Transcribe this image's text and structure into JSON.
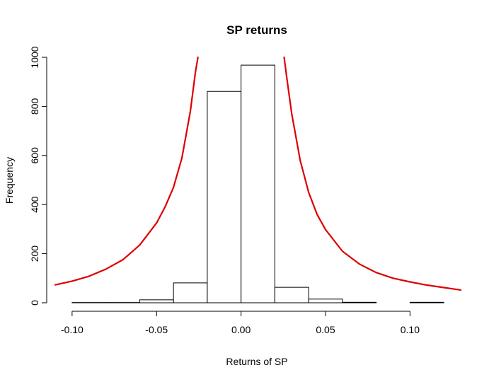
{
  "chart_data": {
    "type": "bar",
    "title": "SP returns",
    "xlabel": "Returns of SP",
    "ylabel": "Frequency",
    "xlim": [
      -0.11,
      0.13
    ],
    "ylim": [
      0,
      1000
    ],
    "x_ticks": [
      -0.1,
      -0.05,
      0.0,
      0.05,
      0.1
    ],
    "x_tick_labels": [
      "-0.10",
      "-0.05",
      "0.00",
      "0.05",
      "0.10"
    ],
    "y_ticks": [
      0,
      200,
      400,
      600,
      800,
      1000
    ],
    "y_tick_labels": [
      "0",
      "200",
      "400",
      "600",
      "800",
      "1000"
    ],
    "bins": [
      {
        "start": -0.1,
        "end": -0.08,
        "count": 1
      },
      {
        "start": -0.08,
        "end": -0.06,
        "count": 1
      },
      {
        "start": -0.06,
        "end": -0.04,
        "count": 12
      },
      {
        "start": -0.04,
        "end": -0.02,
        "count": 81
      },
      {
        "start": -0.02,
        "end": 0.0,
        "count": 861
      },
      {
        "start": 0.0,
        "end": 0.02,
        "count": 968
      },
      {
        "start": 0.02,
        "end": 0.04,
        "count": 63
      },
      {
        "start": 0.04,
        "end": 0.06,
        "count": 15
      },
      {
        "start": 0.06,
        "end": 0.08,
        "count": 2
      },
      {
        "start": 0.08,
        "end": 0.1,
        "count": 0
      },
      {
        "start": 0.1,
        "end": 0.12,
        "count": 2
      }
    ],
    "overlay_curve": {
      "color": "#dd0000",
      "points": [
        [
          -0.11,
          73
        ],
        [
          -0.1,
          88
        ],
        [
          -0.09,
          108
        ],
        [
          -0.08,
          137
        ],
        [
          -0.07,
          175
        ],
        [
          -0.06,
          235
        ],
        [
          -0.05,
          325
        ],
        [
          -0.045,
          390
        ],
        [
          -0.04,
          470
        ],
        [
          -0.035,
          590
        ],
        [
          -0.03,
          780
        ],
        [
          -0.027,
          940
        ],
        [
          -0.0255,
          1000
        ],
        [
          0.0255,
          1000
        ],
        [
          0.027,
          920
        ],
        [
          0.03,
          770
        ],
        [
          0.035,
          580
        ],
        [
          0.04,
          450
        ],
        [
          0.045,
          360
        ],
        [
          0.05,
          298
        ],
        [
          0.06,
          210
        ],
        [
          0.07,
          158
        ],
        [
          0.08,
          123
        ],
        [
          0.09,
          100
        ],
        [
          0.1,
          85
        ],
        [
          0.11,
          72
        ],
        [
          0.12,
          62
        ],
        [
          0.13,
          52
        ]
      ]
    },
    "grid": false,
    "legend": "none"
  }
}
